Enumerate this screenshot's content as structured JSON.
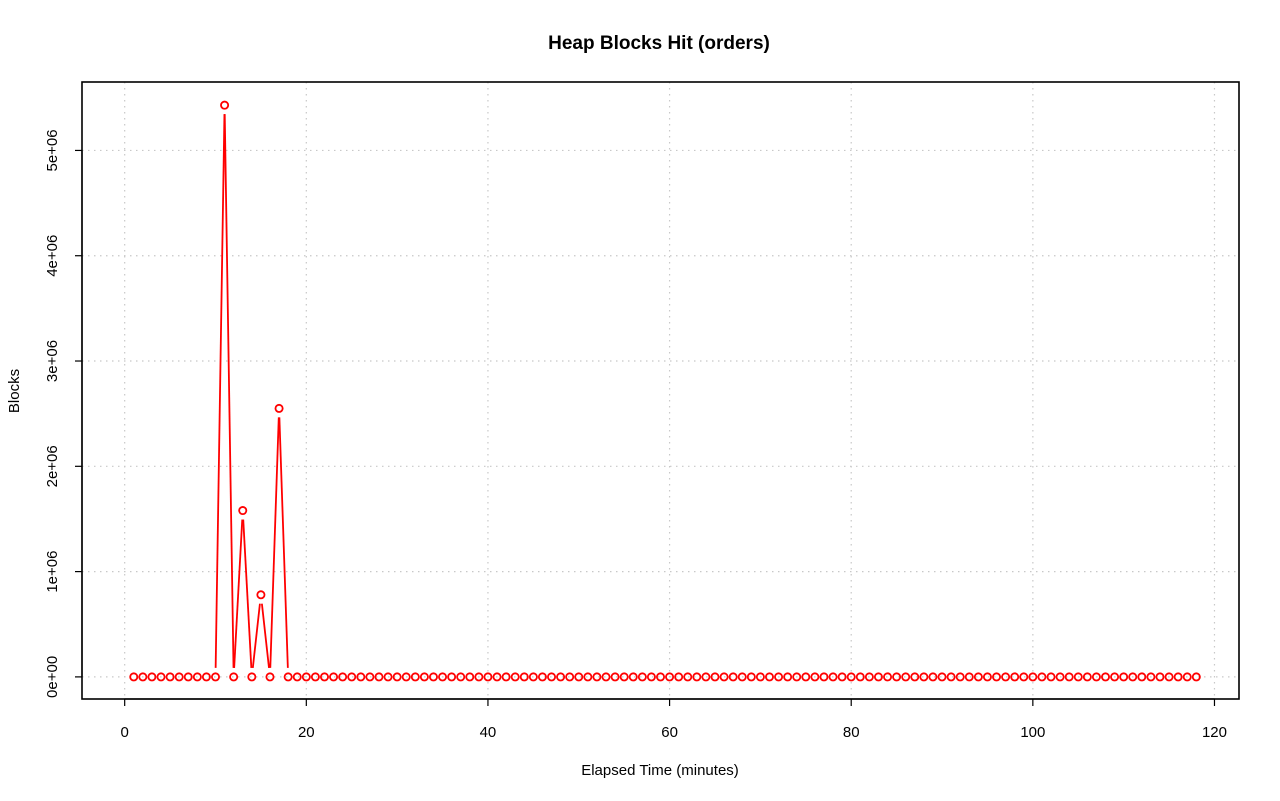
{
  "chart_data": {
    "type": "line",
    "title": "Heap Blocks Hit (orders)",
    "xlabel": "Elapsed Time (minutes)",
    "ylabel": "Blocks",
    "xlim": [
      -4.7,
      122.7
    ],
    "ylim": [
      -210000,
      5650000
    ],
    "x_ticks": [
      0,
      20,
      40,
      60,
      80,
      100,
      120
    ],
    "x_tick_labels": [
      "0",
      "20",
      "40",
      "60",
      "80",
      "100",
      "120"
    ],
    "y_ticks": [
      0,
      1000000,
      2000000,
      3000000,
      4000000,
      5000000
    ],
    "y_tick_labels": [
      "0e+00",
      "1e+06",
      "2e+06",
      "3e+06",
      "4e+06",
      "5e+06"
    ],
    "grid": true,
    "series": [
      {
        "color": "#ff0000",
        "marker": "open-circle",
        "style": "overplotted",
        "x": [
          1,
          2,
          3,
          4,
          5,
          6,
          7,
          8,
          9,
          10,
          11,
          12,
          13,
          14,
          15,
          16,
          17,
          18,
          19,
          20,
          21,
          22,
          23,
          24,
          25,
          26,
          27,
          28,
          29,
          30,
          31,
          32,
          33,
          34,
          35,
          36,
          37,
          38,
          39,
          40,
          41,
          42,
          43,
          44,
          45,
          46,
          47,
          48,
          49,
          50,
          51,
          52,
          53,
          54,
          55,
          56,
          57,
          58,
          59,
          60,
          61,
          62,
          63,
          64,
          65,
          66,
          67,
          68,
          69,
          70,
          71,
          72,
          73,
          74,
          75,
          76,
          77,
          78,
          79,
          80,
          81,
          82,
          83,
          84,
          85,
          86,
          87,
          88,
          89,
          90,
          91,
          92,
          93,
          94,
          95,
          96,
          97,
          98,
          99,
          100,
          101,
          102,
          103,
          104,
          105,
          106,
          107,
          108,
          109,
          110,
          111,
          112,
          113,
          114,
          115,
          116,
          117,
          118
        ],
        "y": [
          0,
          0,
          0,
          0,
          0,
          0,
          0,
          0,
          0,
          0,
          5430000,
          0,
          1580000,
          0,
          780000,
          0,
          2550000,
          0,
          0,
          0,
          0,
          0,
          0,
          0,
          0,
          0,
          0,
          0,
          0,
          0,
          0,
          0,
          0,
          0,
          0,
          0,
          0,
          0,
          0,
          0,
          0,
          0,
          0,
          0,
          0,
          0,
          0,
          0,
          0,
          0,
          0,
          0,
          0,
          0,
          0,
          0,
          0,
          0,
          0,
          0,
          0,
          0,
          0,
          0,
          0,
          0,
          0,
          0,
          0,
          0,
          0,
          0,
          0,
          0,
          0,
          0,
          0,
          0,
          0,
          0,
          0,
          0,
          0,
          0,
          0,
          0,
          0,
          0,
          0,
          0,
          0,
          0,
          0,
          0,
          0,
          0,
          0,
          0,
          0,
          0,
          0,
          0,
          0,
          0,
          0,
          0,
          0,
          0,
          0,
          0,
          0,
          0,
          0,
          0,
          0,
          0,
          0,
          0
        ]
      }
    ]
  }
}
